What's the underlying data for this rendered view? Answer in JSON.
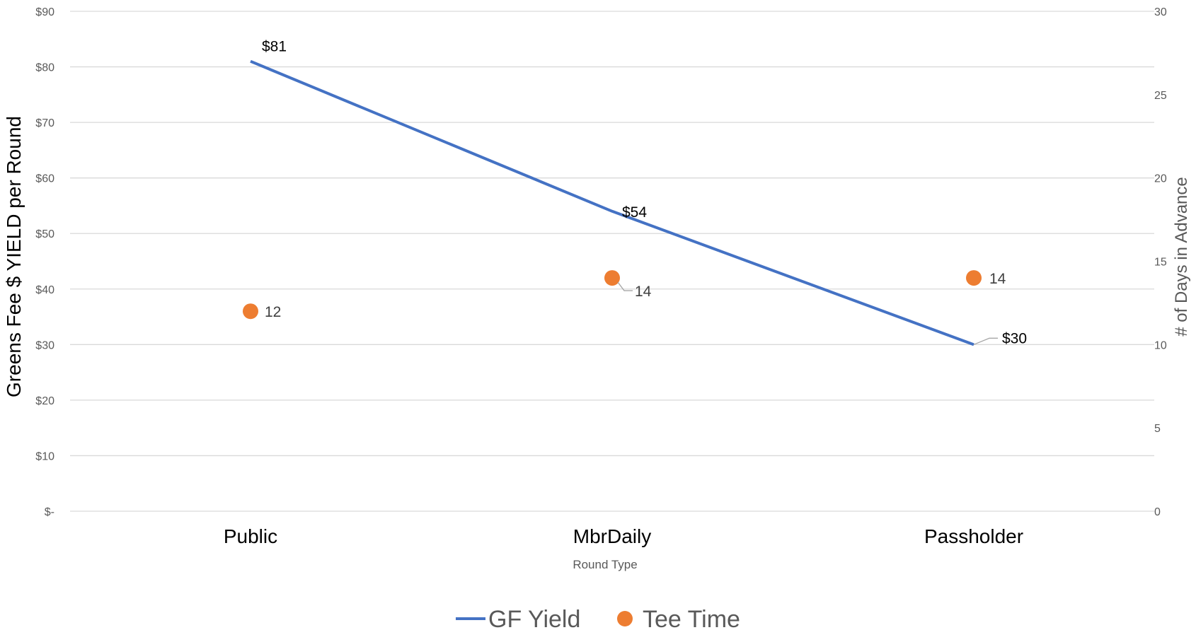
{
  "chart_data": {
    "type": "line",
    "categories": [
      "Public",
      "MbrDaily",
      "Passholder"
    ],
    "xlabel": "Round Type",
    "ylabel": "Greens Fee $ YIELD per Round",
    "y2label": "# of Days in Advance",
    "ylim": [
      0,
      90
    ],
    "y2lim": [
      0,
      30
    ],
    "y_ticks": [
      "$-",
      "$10",
      "$20",
      "$30",
      "$40",
      "$50",
      "$60",
      "$70",
      "$80",
      "$90"
    ],
    "y2_ticks": [
      "0",
      "5",
      "10",
      "15",
      "20",
      "25",
      "30"
    ],
    "grid": true,
    "legend_position": "bottom",
    "series": [
      {
        "name": "GF Yield",
        "type": "line",
        "axis": "left",
        "color": "#4472c4",
        "values": [
          81,
          54,
          30
        ],
        "labels": [
          "$81",
          "$54",
          "$30"
        ]
      },
      {
        "name": "Tee Time",
        "type": "scatter",
        "axis": "right",
        "color": "#ed7d31",
        "values": [
          12,
          14,
          14
        ],
        "labels": [
          "12",
          "14",
          "14"
        ]
      }
    ]
  }
}
